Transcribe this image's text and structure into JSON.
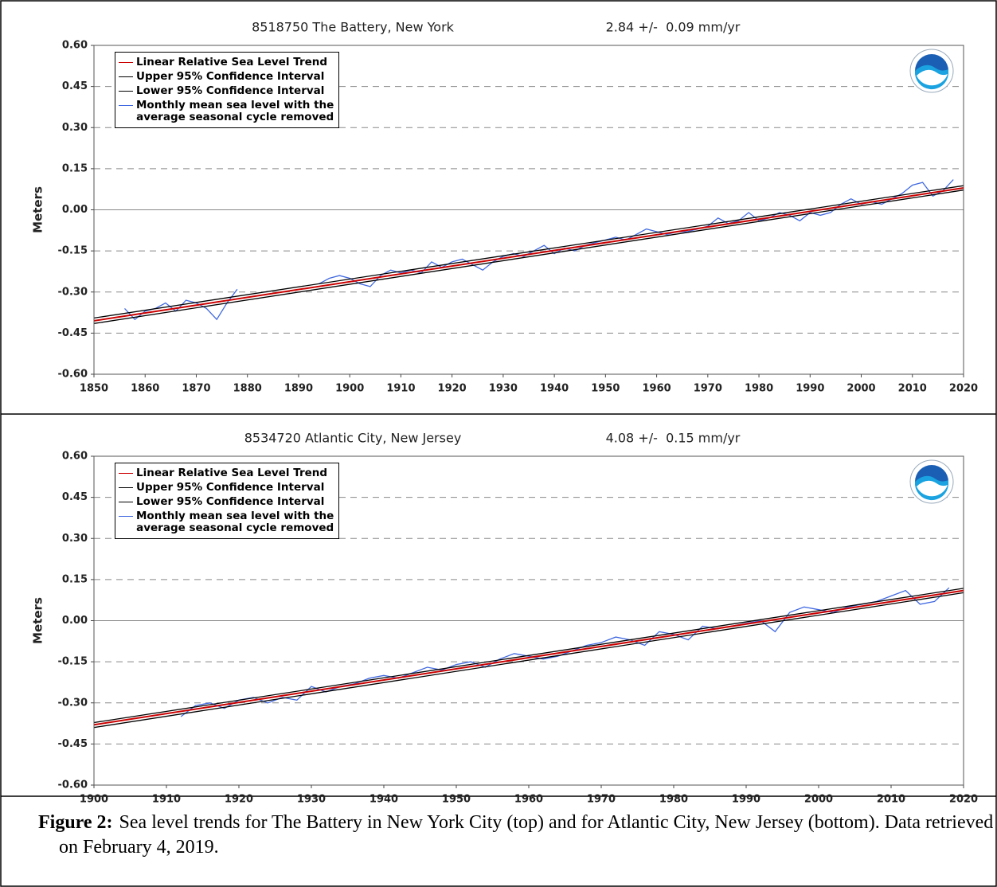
{
  "chart_data": [
    {
      "type": "line",
      "title": "8518750 The Battery, New York",
      "subtitle": "2.84 +/-  0.09 mm/yr",
      "ylabel": "Meters",
      "xlim": [
        1850,
        2020
      ],
      "ylim": [
        -0.6,
        0.6
      ],
      "xticks": [
        1850,
        1860,
        1870,
        1880,
        1890,
        1900,
        1910,
        1920,
        1930,
        1940,
        1950,
        1960,
        1970,
        1980,
        1990,
        2000,
        2010,
        2020
      ],
      "yticks": [
        {
          "value": -0.6,
          "label": "-0.60"
        },
        {
          "value": -0.45,
          "label": "-0.45"
        },
        {
          "value": -0.3,
          "label": "-0.30"
        },
        {
          "value": -0.15,
          "label": "-0.15"
        },
        {
          "value": 0,
          "label": "0.00"
        },
        {
          "value": 0.15,
          "label": "0.15"
        },
        {
          "value": 0.3,
          "label": "0.30"
        },
        {
          "value": 0.45,
          "label": "0.45"
        },
        {
          "value": 0.6,
          "label": "0.60"
        }
      ],
      "grid": true,
      "legend": "upper left",
      "series": [
        {
          "name": "Linear Relative Sea Level Trend",
          "color": "#cc0000",
          "x": [
            1850,
            2020
          ],
          "values": [
            -0.405,
            0.08
          ]
        },
        {
          "name": "Upper 95% Confidence Interval",
          "color": "#000000",
          "x": [
            1850,
            2020
          ],
          "values": [
            -0.395,
            0.088
          ]
        },
        {
          "name": "Lower 95% Confidence Interval",
          "color": "#000000",
          "x": [
            1850,
            2020
          ],
          "values": [
            -0.415,
            0.072
          ]
        },
        {
          "name": "Monthly mean sea level with the\naverage seasonal cycle removed",
          "color": "#4169e1",
          "x": [
            1856,
            1858,
            1860,
            1862,
            1864,
            1866,
            1868,
            1870,
            1872,
            1874,
            1876,
            1878,
            1886,
            1894,
            1896,
            1898,
            1900,
            1902,
            1904,
            1906,
            1908,
            1910,
            1912,
            1914,
            1916,
            1918,
            1920,
            1922,
            1924,
            1926,
            1928,
            1930,
            1932,
            1934,
            1936,
            1938,
            1940,
            1942,
            1944,
            1946,
            1948,
            1950,
            1952,
            1954,
            1956,
            1958,
            1960,
            1962,
            1964,
            1966,
            1968,
            1970,
            1972,
            1974,
            1976,
            1978,
            1980,
            1982,
            1984,
            1986,
            1988,
            1990,
            1992,
            1994,
            1996,
            1998,
            2000,
            2002,
            2004,
            2006,
            2008,
            2010,
            2012,
            2014,
            2016,
            2018
          ],
          "values": [
            -0.36,
            -0.4,
            -0.37,
            -0.36,
            -0.34,
            -0.37,
            -0.33,
            -0.34,
            -0.36,
            -0.4,
            -0.34,
            -0.29,
            null,
            -0.27,
            -0.25,
            -0.24,
            -0.25,
            -0.27,
            -0.28,
            -0.24,
            -0.22,
            -0.23,
            -0.22,
            -0.23,
            -0.19,
            -0.21,
            -0.19,
            -0.18,
            -0.2,
            -0.22,
            -0.19,
            -0.17,
            -0.16,
            -0.17,
            -0.15,
            -0.13,
            -0.16,
            -0.14,
            -0.15,
            -0.13,
            -0.12,
            -0.11,
            -0.1,
            -0.11,
            -0.09,
            -0.07,
            -0.08,
            -0.09,
            -0.08,
            -0.08,
            -0.07,
            -0.06,
            -0.03,
            -0.05,
            -0.04,
            -0.01,
            -0.04,
            -0.03,
            -0.01,
            -0.02,
            -0.04,
            -0.01,
            -0.02,
            -0.01,
            0.02,
            0.04,
            0.02,
            0.03,
            0.02,
            0.04,
            0.06,
            0.09,
            0.1,
            0.05,
            0.07,
            0.11
          ]
        }
      ]
    },
    {
      "type": "line",
      "title": "8534720 Atlantic City, New Jersey",
      "subtitle": "4.08 +/-  0.15 mm/yr",
      "ylabel": "Meters",
      "xlim": [
        1900,
        2020
      ],
      "ylim": [
        -0.6,
        0.6
      ],
      "xticks": [
        1900,
        1910,
        1920,
        1930,
        1940,
        1950,
        1960,
        1970,
        1980,
        1990,
        2000,
        2010,
        2020
      ],
      "yticks": [
        {
          "value": -0.6,
          "label": "-0.60"
        },
        {
          "value": -0.45,
          "label": "-0.45"
        },
        {
          "value": -0.3,
          "label": "-0.30"
        },
        {
          "value": -0.15,
          "label": "-0.15"
        },
        {
          "value": 0,
          "label": "0.00"
        },
        {
          "value": 0.15,
          "label": "0.15"
        },
        {
          "value": 0.3,
          "label": "0.30"
        },
        {
          "value": 0.45,
          "label": "0.45"
        },
        {
          "value": 0.6,
          "label": "0.60"
        }
      ],
      "grid": true,
      "legend": "upper left",
      "series": [
        {
          "name": "Linear Relative Sea Level Trend",
          "color": "#cc0000",
          "x": [
            1900,
            2020
          ],
          "values": [
            -0.38,
            0.11
          ]
        },
        {
          "name": "Upper 95% Confidence Interval",
          "color": "#000000",
          "x": [
            1900,
            2020
          ],
          "values": [
            -0.372,
            0.118
          ]
        },
        {
          "name": "Lower 95% Confidence Interval",
          "color": "#000000",
          "x": [
            1900,
            2020
          ],
          "values": [
            -0.39,
            0.102
          ]
        },
        {
          "name": "Monthly mean sea level with the\naverage seasonal cycle removed",
          "color": "#4169e1",
          "x": [
            1912,
            1914,
            1916,
            1918,
            1920,
            1922,
            1924,
            1926,
            1928,
            1930,
            1932,
            1934,
            1936,
            1938,
            1940,
            1942,
            1944,
            1946,
            1948,
            1950,
            1952,
            1954,
            1956,
            1958,
            1960,
            1962,
            1964,
            1966,
            1968,
            1970,
            1972,
            1974,
            1976,
            1978,
            1980,
            1982,
            1984,
            1986,
            1988,
            1990,
            1992,
            1994,
            1996,
            1998,
            2000,
            2002,
            2004,
            2006,
            2008,
            2010,
            2012,
            2014,
            2016,
            2018
          ],
          "values": [
            -0.35,
            -0.31,
            -0.3,
            -0.32,
            -0.29,
            -0.28,
            -0.3,
            -0.28,
            -0.29,
            -0.24,
            -0.26,
            -0.24,
            -0.23,
            -0.21,
            -0.2,
            -0.21,
            -0.19,
            -0.17,
            -0.18,
            -0.16,
            -0.15,
            -0.17,
            -0.14,
            -0.12,
            -0.13,
            -0.14,
            -0.13,
            -0.11,
            -0.09,
            -0.08,
            -0.06,
            -0.07,
            -0.09,
            -0.04,
            -0.05,
            -0.07,
            -0.02,
            -0.03,
            -0.02,
            -0.01,
            0,
            -0.04,
            0.03,
            0.05,
            0.04,
            0.03,
            0.05,
            0.06,
            0.07,
            0.09,
            0.11,
            0.06,
            0.07,
            0.12
          ]
        }
      ]
    }
  ],
  "caption": {
    "label": "Figure 2:",
    "text": "Sea level trends for The Battery in New York City (top) and for Atlantic City, New Jersey (bottom).  Data retrieved on February 4, 2019."
  }
}
